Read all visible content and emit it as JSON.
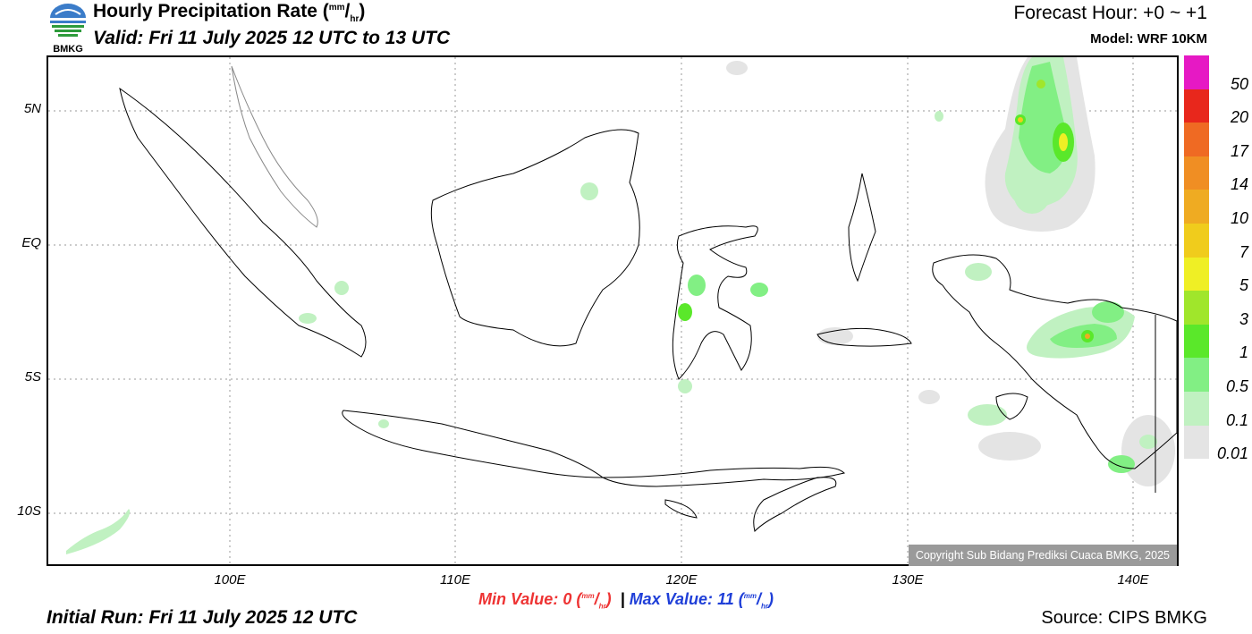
{
  "header": {
    "title_main": "Hourly Precipitation Rate (",
    "unit_num": "mm",
    "unit_slash": "/",
    "unit_den": "hr",
    "title_close": ")",
    "valid": "Valid: Fri 11 July 2025 12 UTC to 13 UTC",
    "forecast_hour": "Forecast Hour: +0 ~ +1",
    "model": "Model: WRF 10KM",
    "logo_text": "BMKG"
  },
  "map": {
    "y_ticks": [
      "5N",
      "EQ",
      "5S",
      "10S"
    ],
    "x_ticks": [
      "100E",
      "110E",
      "120E",
      "130E",
      "140E"
    ],
    "copyright": "Copyright Sub Bidang Prediksi Cuaca BMKG, 2025"
  },
  "legend": {
    "labels": [
      "50",
      "20",
      "17",
      "14",
      "10",
      "7",
      "5",
      "3",
      "1",
      "0.5",
      "0.1",
      "0.01"
    ],
    "colors": [
      "#e619c4",
      "#e8271c",
      "#ef6a23",
      "#f08e23",
      "#efab22",
      "#f0cc1c",
      "#efef25",
      "#a0e62b",
      "#5ae82a",
      "#82ef84",
      "#c0f1c1",
      "#e4e4e4"
    ]
  },
  "footer": {
    "min_label": "Min Value:",
    "min_value": "0",
    "separator": "|",
    "max_label": "Max Value:",
    "max_value": "11",
    "unit_num": "mm",
    "unit_den": "hr",
    "initial_run": "Initial Run: Fri 11 July 2025 12 UTC",
    "source": "Source: CIPS BMKG"
  }
}
